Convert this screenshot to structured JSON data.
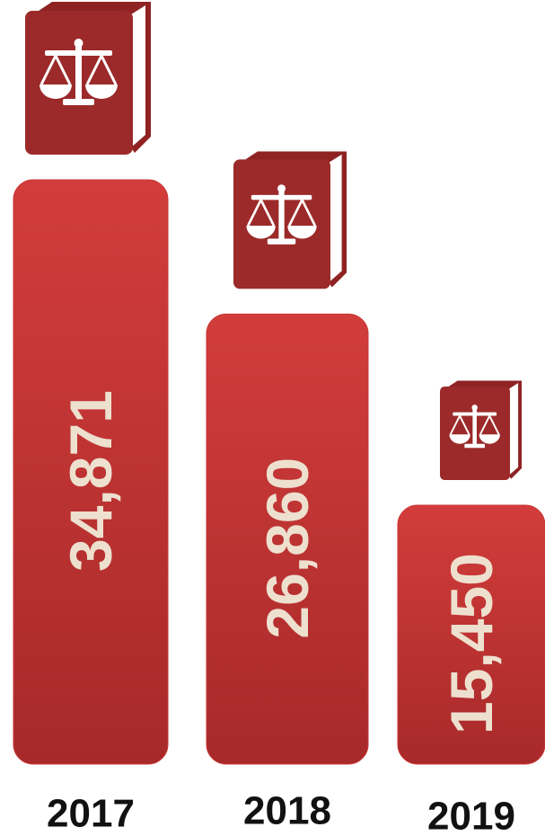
{
  "chart_data": {
    "type": "bar",
    "categories": [
      "2017",
      "2018",
      "2019"
    ],
    "values": [
      34871,
      26860,
      15450
    ],
    "value_labels": [
      "34,871",
      "26,860",
      "15,450"
    ],
    "color": "#c73634"
  }
}
